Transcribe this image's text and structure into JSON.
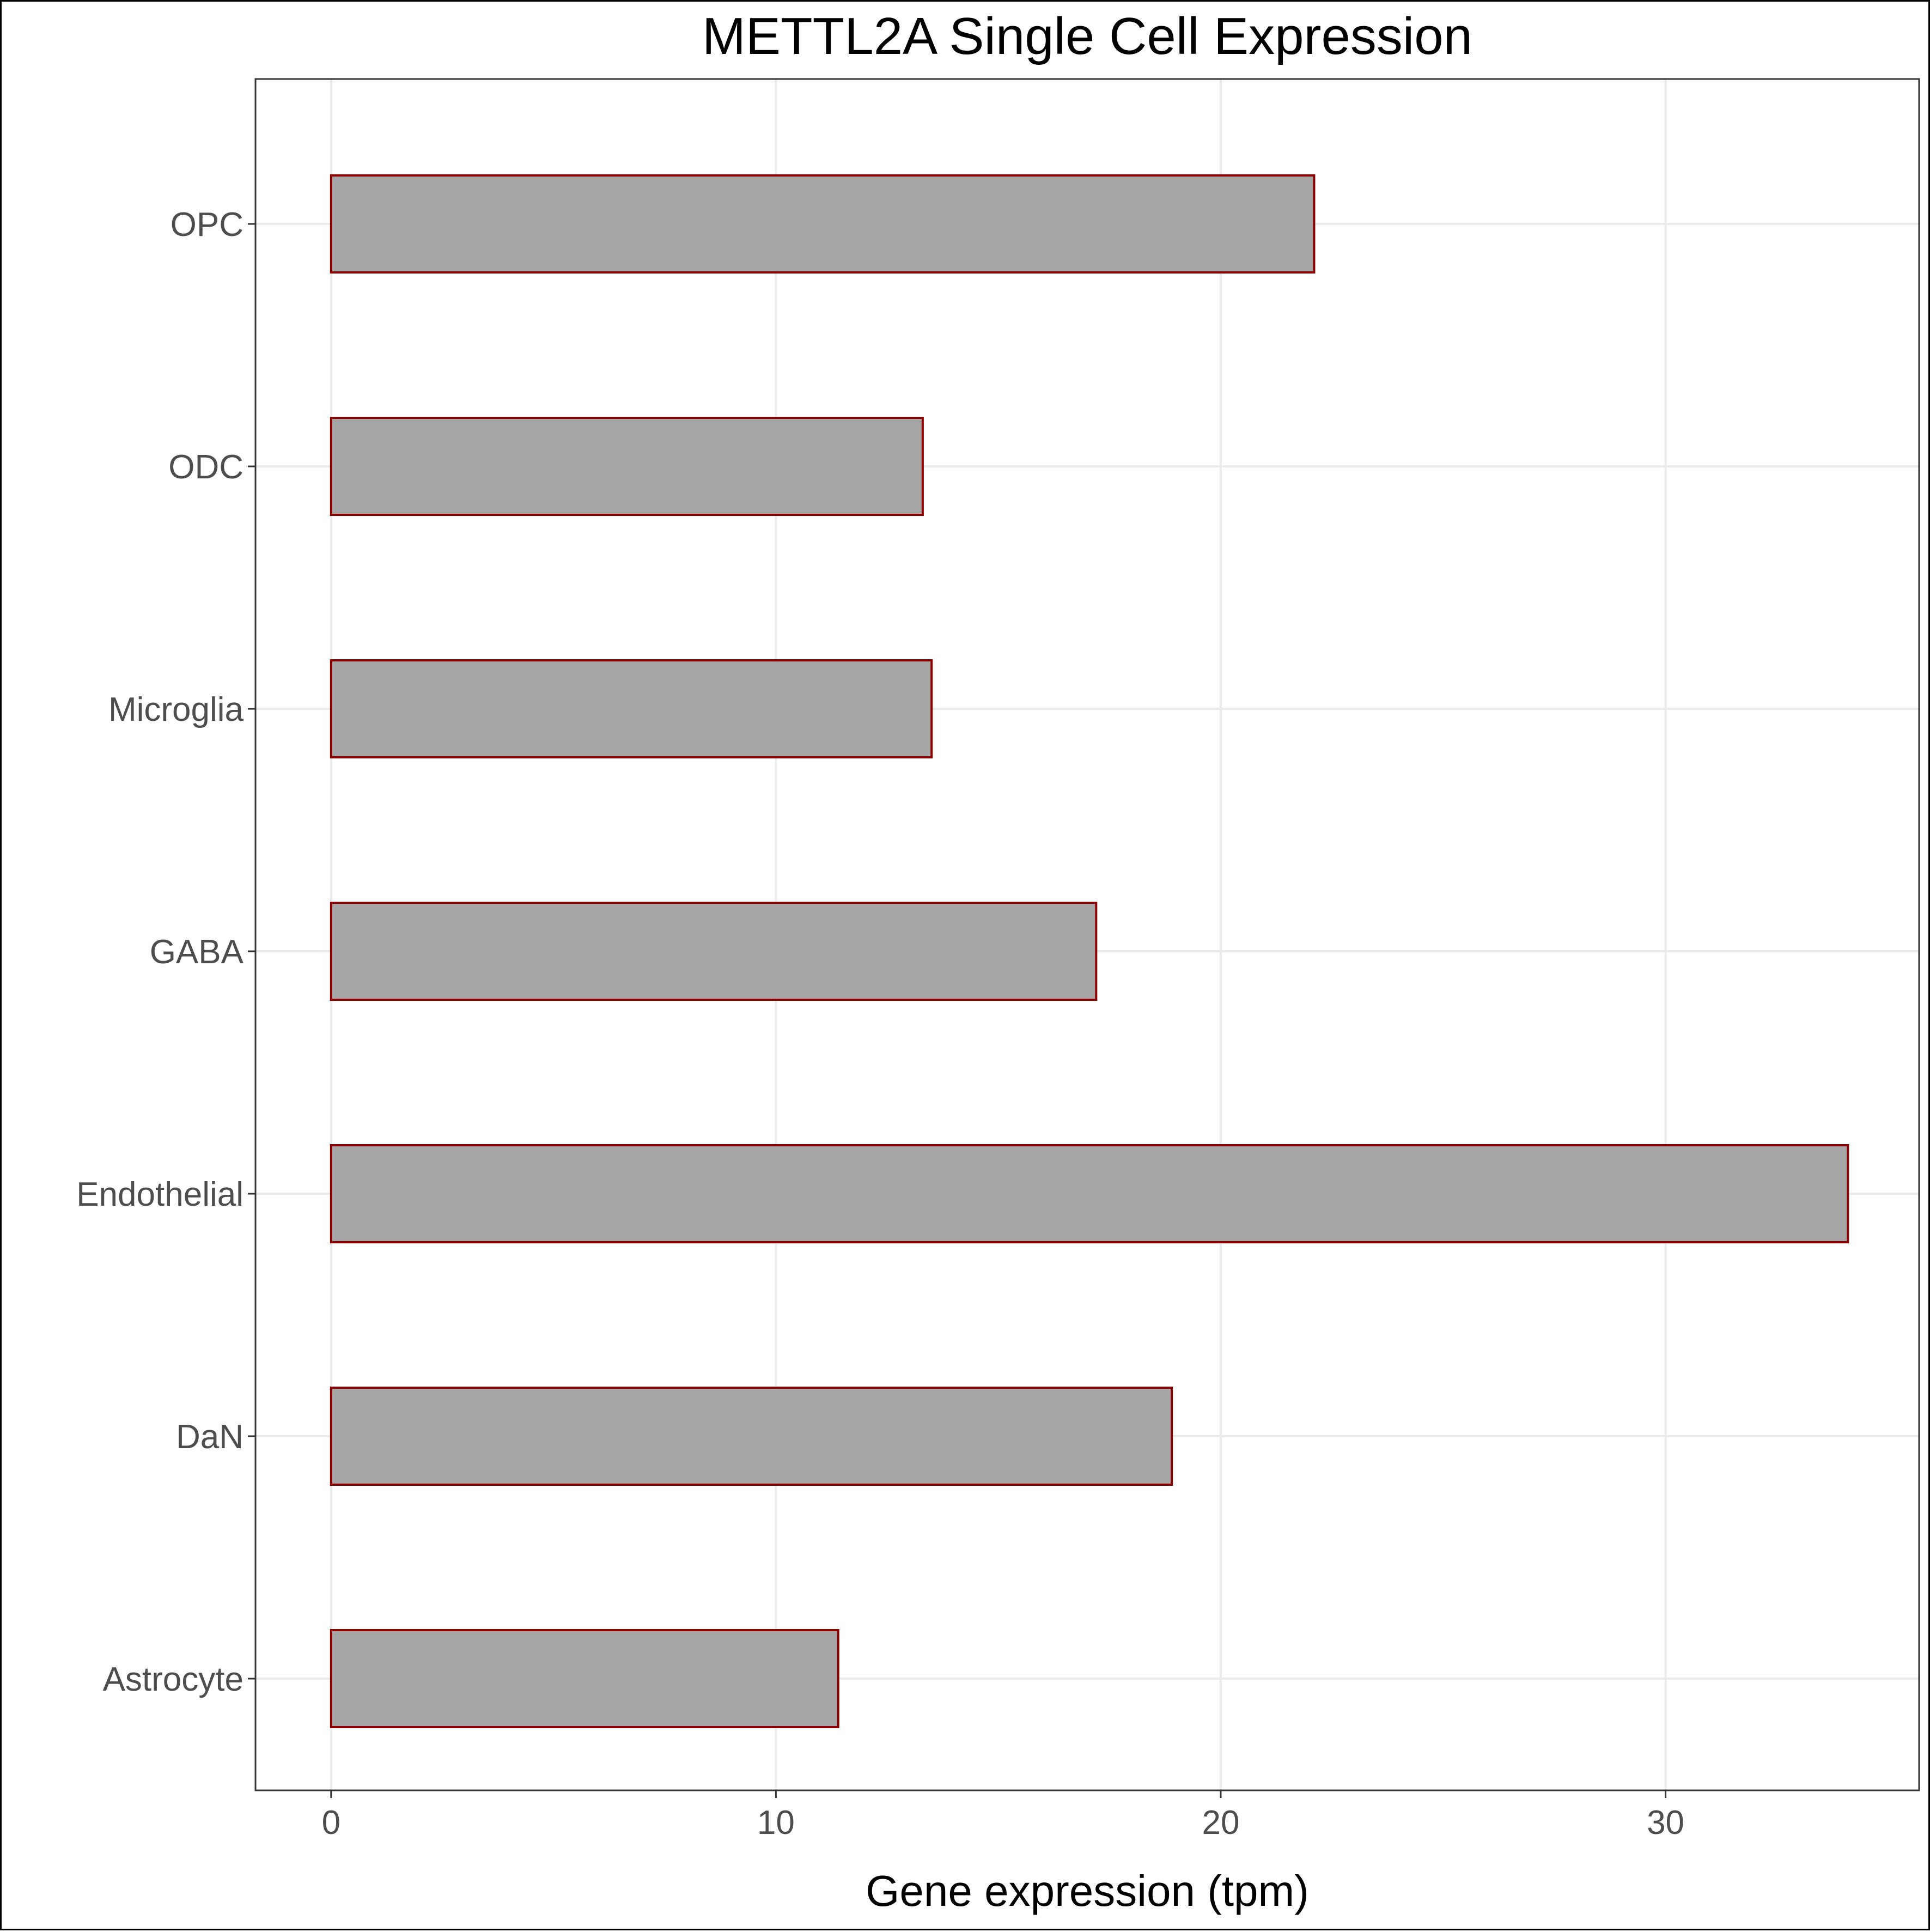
{
  "chart_data": {
    "type": "bar",
    "orientation": "horizontal",
    "title": "METTL2A Single Cell Expression",
    "xlabel": "Gene expression (tpm)",
    "ylabel": "",
    "categories": [
      "Astrocyte",
      "DaN",
      "Endothelial",
      "GABA",
      "Microglia",
      "ODC",
      "OPC"
    ],
    "values": [
      11.4,
      18.9,
      34.1,
      17.2,
      13.5,
      13.3,
      22.1
    ],
    "xlim": [
      -1.7,
      35.7
    ],
    "xticks": [
      0,
      10,
      20,
      30
    ],
    "xtick_labels": [
      "0",
      "10",
      "20",
      "30"
    ],
    "grid": true,
    "colors": {
      "bar_fill": "#a6a6a6",
      "bar_stroke": "#8b0000",
      "grid": "#ebebeb",
      "panel_border": "#333333"
    }
  }
}
